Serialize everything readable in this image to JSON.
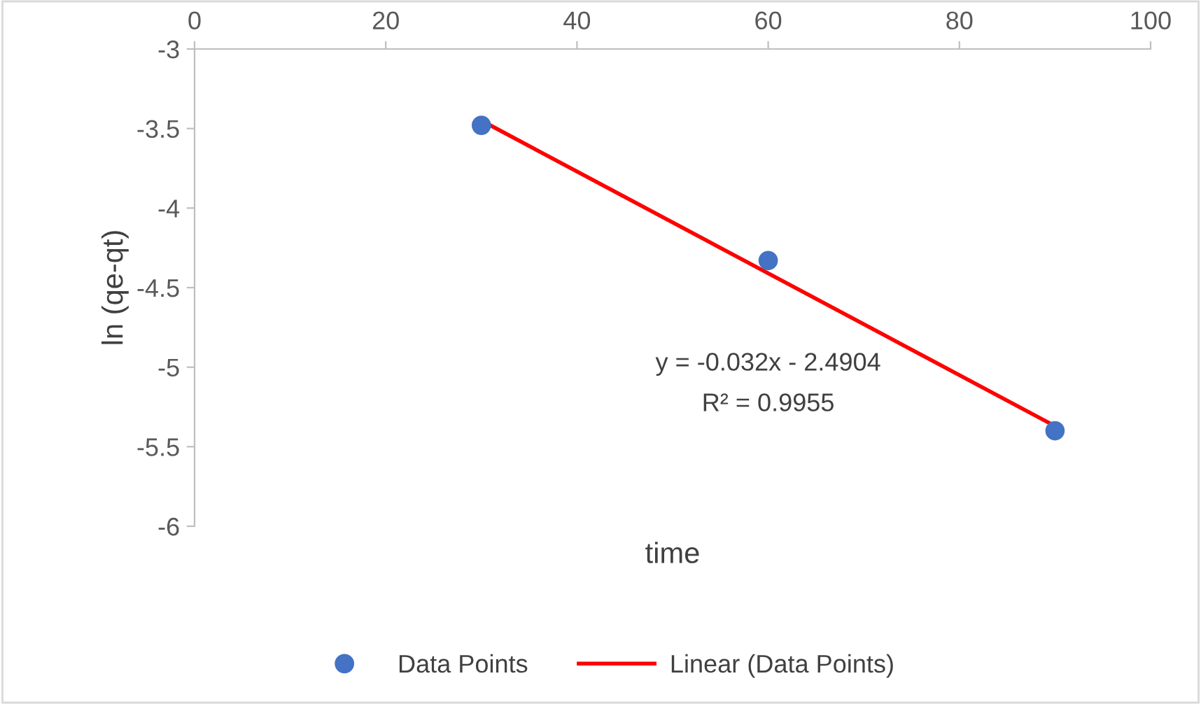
{
  "chart_data": {
    "type": "scatter",
    "xlabel": "time",
    "ylabel": "ln (qe-qt)",
    "x": [
      30,
      60,
      90
    ],
    "series": [
      {
        "name": "Data Points",
        "color": "#4472c4",
        "values": [
          -3.48,
          -4.33,
          -5.4
        ],
        "marker": "circle"
      },
      {
        "name": "Linear (Data Points)",
        "type": "line",
        "color": "#ff0000",
        "x": [
          30,
          90
        ],
        "values": [
          -3.45,
          -5.37
        ],
        "marker": "none"
      }
    ],
    "xlim": [
      0,
      100
    ],
    "xticks": [
      0,
      20,
      40,
      60,
      80,
      100
    ],
    "ylim": [
      -6,
      -3
    ],
    "yticks": [
      -6,
      -5.5,
      -5,
      -4.5,
      -4,
      -3.5,
      -3
    ],
    "annotations": [
      "y = -0.032x - 2.4904",
      "R² = 0.9955"
    ],
    "grid": false,
    "legend": "bottom"
  }
}
